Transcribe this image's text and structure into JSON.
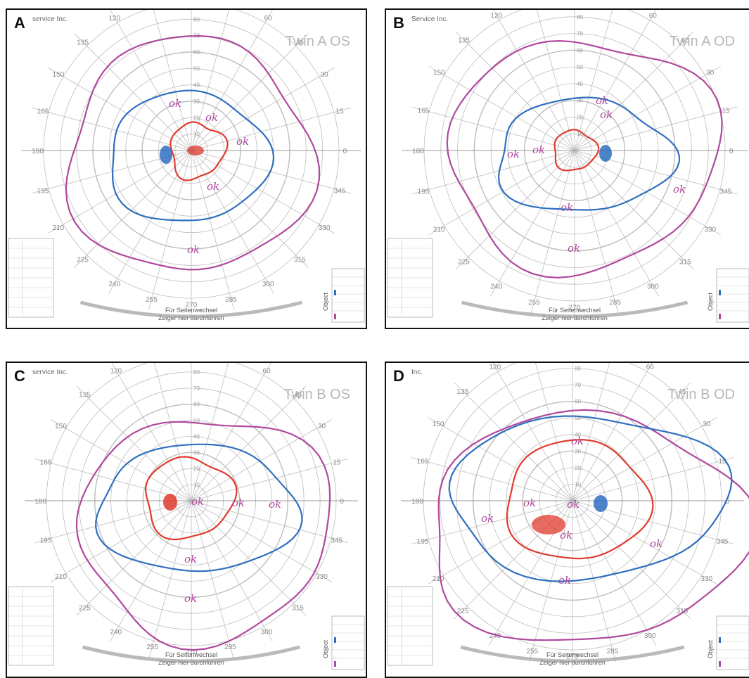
{
  "panels": [
    {
      "letter": "A",
      "title": "Twin A OS",
      "header": "service Inc."
    },
    {
      "letter": "B",
      "title": "Twin A OD",
      "header": "Service Inc."
    },
    {
      "letter": "C",
      "title": "Twin B OS",
      "header": "service Inc."
    },
    {
      "letter": "D",
      "title": "Twin B OD",
      "header": "Inc."
    }
  ],
  "chart_common": {
    "meridian_labels": [
      "90",
      "105",
      "120",
      "135",
      "150",
      "165",
      "180",
      "195",
      "210",
      "225",
      "240",
      "255",
      "270",
      "285",
      "300",
      "315",
      "330",
      "345",
      "0",
      "15",
      "30",
      "45",
      "60",
      "75"
    ],
    "radial_labels": [
      "10",
      "20",
      "30",
      "40",
      "50",
      "60",
      "70",
      "80",
      "90"
    ],
    "bottom_text_1": "Für Seitenwechsel",
    "bottom_text_2": "Zeiger hier durchführen",
    "object_label": "Object",
    "annotation": "ok"
  },
  "colors": {
    "grid": "#bdbdbd",
    "isopter_outer": "#b0489e",
    "isopter_middle": "#2f6fc0",
    "isopter_inner": "#e03a2e",
    "scotoma": "#2f6fc0"
  }
}
